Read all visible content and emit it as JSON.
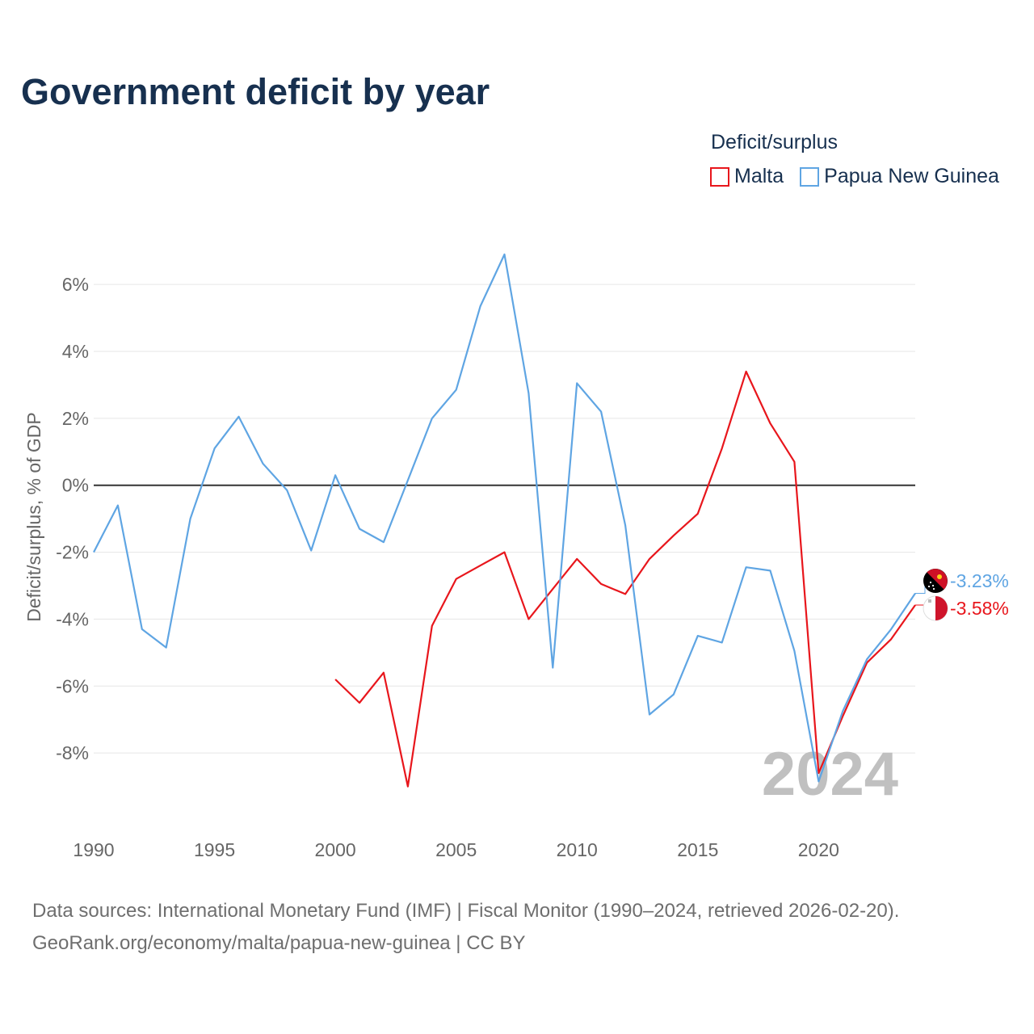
{
  "title": "Government deficit by year",
  "legend": {
    "title": "Deficit/surplus",
    "items": [
      {
        "label": "Malta",
        "color": "#e8161c"
      },
      {
        "label": "Papua New Guinea",
        "color": "#5fa5e3"
      }
    ]
  },
  "chart_data": {
    "type": "line",
    "ylabel": "Deficit/surplus, % of GDP",
    "xlabel": "",
    "xlim": [
      1990,
      2024
    ],
    "ylim": [
      -10,
      7.5
    ],
    "x_ticks": [
      1990,
      1995,
      2000,
      2005,
      2010,
      2015,
      2020
    ],
    "x_tick_labels": [
      "1990",
      "1995",
      "2000",
      "2005",
      "2010",
      "2015",
      "2020"
    ],
    "y_ticks": [
      6,
      4,
      2,
      0,
      -2,
      -4,
      -6,
      -8
    ],
    "y_tick_labels": [
      "6%",
      "4%",
      "2%",
      "0%",
      "-2%",
      "-4%",
      "-6%",
      "-8%"
    ],
    "zero_line": true,
    "watermark_year": "2024",
    "series": [
      {
        "name": "Malta",
        "color": "#e8161c",
        "flag": "malta-flag",
        "end_label": "-3.58%",
        "x": [
          2000,
          2001,
          2002,
          2003,
          2004,
          2005,
          2006,
          2007,
          2008,
          2009,
          2010,
          2011,
          2012,
          2013,
          2014,
          2015,
          2016,
          2017,
          2018,
          2019,
          2020,
          2021,
          2022,
          2023,
          2024
        ],
        "values": [
          -5.8,
          -6.5,
          -5.6,
          -9.0,
          -4.2,
          -2.8,
          -2.4,
          -2.0,
          -4.0,
          -3.1,
          -2.2,
          -2.95,
          -3.25,
          -2.2,
          -1.5,
          -0.85,
          1.1,
          3.4,
          1.85,
          0.7,
          -8.6,
          -6.9,
          -5.3,
          -4.6,
          -3.58
        ]
      },
      {
        "name": "Papua New Guinea",
        "color": "#5fa5e3",
        "flag": "papua-new-guinea-flag",
        "end_label": "-3.23%",
        "x": [
          1990,
          1991,
          1992,
          1993,
          1994,
          1995,
          1996,
          1997,
          1998,
          1999,
          2000,
          2001,
          2002,
          2003,
          2004,
          2005,
          2006,
          2007,
          2008,
          2009,
          2010,
          2011,
          2012,
          2013,
          2014,
          2015,
          2016,
          2017,
          2018,
          2019,
          2020,
          2021,
          2022,
          2023,
          2024
        ],
        "values": [
          -2.0,
          -0.6,
          -4.3,
          -4.85,
          -1.0,
          1.1,
          2.05,
          0.65,
          -0.15,
          -1.95,
          0.3,
          -1.3,
          -1.7,
          0.15,
          2.0,
          2.85,
          5.35,
          6.9,
          2.75,
          -5.45,
          3.05,
          2.2,
          -1.2,
          -6.85,
          -6.25,
          -4.5,
          -4.7,
          -2.45,
          -2.55,
          -4.95,
          -8.85,
          -6.75,
          -5.2,
          -4.3,
          -3.23
        ]
      }
    ]
  },
  "footer": {
    "line1": "Data sources: International Monetary Fund (IMF) | Fiscal Monitor (1990–2024, retrieved 2026-02-20).",
    "line2": "GeoRank.org/economy/malta/papua-new-guinea | CC BY"
  }
}
